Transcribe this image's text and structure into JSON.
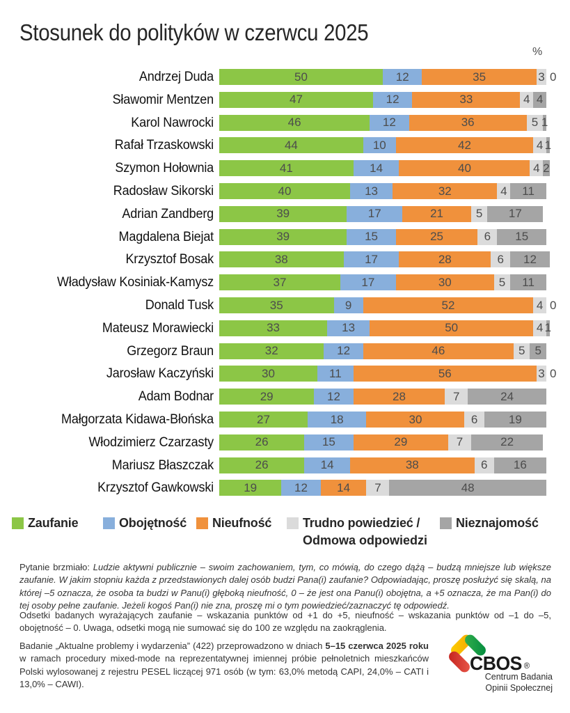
{
  "title": "Stosunek do polityków w czerwcu 2025",
  "unit_label": "%",
  "chart_data": {
    "type": "bar",
    "stacked": true,
    "orientation": "horizontal",
    "unit": "%",
    "xlim": [
      0,
      100
    ],
    "legend_position": "bottom",
    "categories": [
      "Andrzej Duda",
      "Sławomir Mentzen",
      "Karol Nawrocki",
      "Rafał Trzaskowski",
      "Szymon Hołownia",
      "Radosław Sikorski",
      "Adrian Zandberg",
      "Magdalena Biejat",
      "Krzysztof Bosak",
      "Władysław Kosiniak-Kamysz",
      "Donald Tusk",
      "Mateusz Morawiecki",
      "Grzegorz Braun",
      "Jarosław Kaczyński",
      "Adam Bodnar",
      "Małgorzata Kidawa-Błońska",
      "Włodzimierz Czarzasty",
      "Mariusz Błaszczak",
      "Krzysztof Gawkowski"
    ],
    "series": [
      {
        "name": "Zaufanie",
        "color": "#8CC646",
        "values": [
          50,
          47,
          46,
          44,
          41,
          40,
          39,
          39,
          38,
          37,
          35,
          33,
          32,
          30,
          29,
          27,
          26,
          26,
          19
        ]
      },
      {
        "name": "Obojętność",
        "color": "#88AFDC",
        "values": [
          12,
          12,
          12,
          10,
          14,
          13,
          17,
          15,
          17,
          17,
          9,
          13,
          12,
          11,
          12,
          18,
          15,
          14,
          12
        ]
      },
      {
        "name": "Nieufność",
        "color": "#F0913C",
        "values": [
          35,
          33,
          36,
          42,
          40,
          32,
          21,
          25,
          28,
          30,
          52,
          50,
          46,
          56,
          28,
          30,
          29,
          38,
          14
        ]
      },
      {
        "name": "Trudno powiedzieć / Odmowa odpowiedzi",
        "color": "#DBDBDB",
        "values": [
          3,
          4,
          5,
          4,
          4,
          4,
          5,
          6,
          6,
          5,
          4,
          4,
          5,
          3,
          7,
          6,
          7,
          6,
          7
        ]
      },
      {
        "name": "Nieznajomość",
        "color": "#A5A5A5",
        "values": [
          0,
          4,
          1,
          1,
          2,
          11,
          17,
          15,
          12,
          11,
          0,
          1,
          5,
          0,
          24,
          19,
          22,
          16,
          48
        ]
      }
    ]
  },
  "legend": {
    "items": [
      {
        "label": "Zaufanie"
      },
      {
        "label": "Obojętność"
      },
      {
        "label": "Nieufność"
      },
      {
        "label": "Trudno powiedzieć /",
        "label2": "Odmowa odpowiedzi"
      },
      {
        "label": "Nieznajomość"
      }
    ]
  },
  "footnotes": {
    "q_lead": "Pytanie brzmiało: ",
    "q_text": "Ludzie aktywni publicznie – swoim zachowaniem, tym, co mówią, do czego dążą – budzą mniejsze lub większe zaufanie. W jakim stopniu każda z przedstawionych dalej osób budzi Pana(i) zaufanie? Odpowiadając, proszę posłużyć się skalą, na której –5 oznacza, że osoba ta budzi w Panu(i) głęboką nieufność, 0 – że jest ona Panu(i) obojętna, a +5 oznacza, że ma Pan(i) do tej osoby pełne zaufanie. Jeżeli kogoś Pan(i) nie zna, proszę mi o tym powiedzieć/zaznaczyć tę odpowiedź.",
    "note2": "Odsetki badanych wyrażających zaufanie – wskazania punktów od +1 do +5, nieufność – wskazania punktów od –1 do –5, obojętność – 0. Uwaga, odsetki mogą nie sumować się do 100 ze względu na zaokrąglenia.",
    "study_prefix": "Badanie „Aktualne problemy i wydarzenia” (422) przeprowadzono w dniach ",
    "study_bold": "5–15 czerwca 2025 roku",
    "study_suffix": " w ramach procedury mixed-mode na reprezentatywnej imiennej próbie pełnoletnich mieszkańców Polski wylosowanej z rejestru PESEL liczącej 971 osób (w tym: 63,0% metodą CAPI, 24,0% – CATI i 13,0% – CAWI)."
  },
  "logo": {
    "name": "CBOS",
    "registered": "®",
    "subtitle1": "Centrum Badania",
    "subtitle2": "Opinii Społecznej"
  }
}
